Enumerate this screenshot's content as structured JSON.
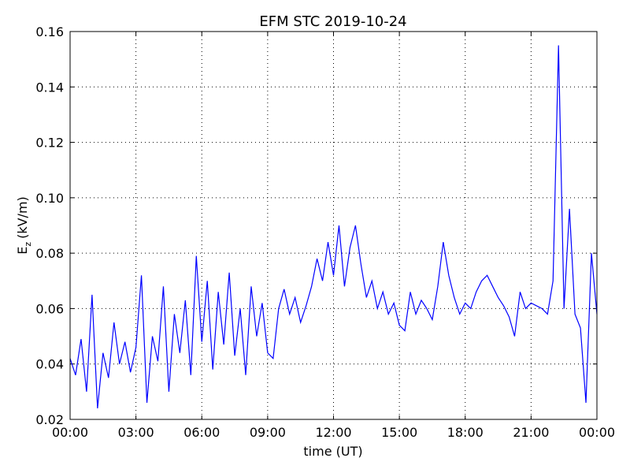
{
  "chart_data": {
    "type": "line",
    "title": "EFM STC    2019-10-24",
    "xlabel": "time (UT)",
    "ylabel": {
      "main": "E",
      "sub": "z",
      "unit": "(kV/m)"
    },
    "x": [
      0,
      0.25,
      0.5,
      0.75,
      1,
      1.25,
      1.5,
      1.75,
      2,
      2.25,
      2.5,
      2.75,
      3,
      3.25,
      3.5,
      3.75,
      4,
      4.25,
      4.5,
      4.75,
      5,
      5.25,
      5.5,
      5.75,
      6,
      6.25,
      6.5,
      6.75,
      7,
      7.25,
      7.5,
      7.75,
      8,
      8.25,
      8.5,
      8.75,
      9,
      9.25,
      9.5,
      9.75,
      10,
      10.25,
      10.5,
      10.75,
      11,
      11.25,
      11.5,
      11.75,
      12,
      12.25,
      12.5,
      12.75,
      13,
      13.25,
      13.5,
      13.75,
      14,
      14.25,
      14.5,
      14.75,
      15,
      15.25,
      15.5,
      15.75,
      16,
      16.25,
      16.5,
      16.75,
      17,
      17.25,
      17.5,
      17.75,
      18,
      18.25,
      18.5,
      18.75,
      19,
      19.25,
      19.5,
      19.75,
      20,
      20.25,
      20.5,
      20.75,
      21,
      21.25,
      21.5,
      21.75,
      22,
      22.25,
      22.5,
      22.75,
      23,
      23.25,
      23.5,
      23.75,
      24
    ],
    "series": [
      {
        "color": "#0000ff",
        "values": [
          0.042,
          0.036,
          0.049,
          0.03,
          0.065,
          0.024,
          0.044,
          0.035,
          0.055,
          0.04,
          0.048,
          0.037,
          0.046,
          0.072,
          0.026,
          0.05,
          0.041,
          0.068,
          0.03,
          0.058,
          0.044,
          0.063,
          0.036,
          0.079,
          0.048,
          0.07,
          0.038,
          0.066,
          0.047,
          0.073,
          0.043,
          0.06,
          0.036,
          0.068,
          0.05,
          0.062,
          0.044,
          0.042,
          0.06,
          0.067,
          0.058,
          0.064,
          0.055,
          0.061,
          0.068,
          0.078,
          0.07,
          0.084,
          0.072,
          0.09,
          0.068,
          0.082,
          0.09,
          0.076,
          0.064,
          0.07,
          0.06,
          0.066,
          0.058,
          0.062,
          0.054,
          0.052,
          0.066,
          0.058,
          0.063,
          0.06,
          0.056,
          0.068,
          0.084,
          0.072,
          0.064,
          0.058,
          0.062,
          0.06,
          0.066,
          0.07,
          0.072,
          0.068,
          0.064,
          0.061,
          0.057,
          0.05,
          0.066,
          0.06,
          0.062,
          0.061,
          0.06,
          0.058,
          0.07,
          0.155,
          0.06,
          0.096,
          0.058,
          0.053,
          0.026,
          0.08,
          0.058
        ]
      }
    ],
    "xlim": [
      0,
      24
    ],
    "xticks": [
      {
        "value": 0,
        "label": "00:00"
      },
      {
        "value": 3,
        "label": "03:00"
      },
      {
        "value": 6,
        "label": "06:00"
      },
      {
        "value": 9,
        "label": "09:00"
      },
      {
        "value": 12,
        "label": "12:00"
      },
      {
        "value": 15,
        "label": "15:00"
      },
      {
        "value": 18,
        "label": "18:00"
      },
      {
        "value": 21,
        "label": "21:00"
      },
      {
        "value": 24,
        "label": "00:00"
      }
    ],
    "ylim": [
      0.02,
      0.16
    ],
    "yticks": [
      0.02,
      0.04,
      0.06,
      0.08,
      {
        "value": 0.1,
        "label": "0.10"
      },
      0.12,
      0.14,
      0.16
    ],
    "grid": true
  }
}
